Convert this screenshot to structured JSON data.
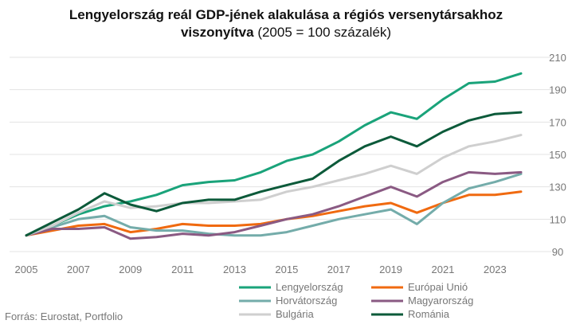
{
  "chart_data": {
    "type": "line",
    "title_bold_1": "Lengyelország reál GDP-jének alakulása a régiós versenytársakhoz",
    "title_bold_2": "viszonyítva",
    "title_rest": " (2005 = 100 százalék)",
    "xlabel": "",
    "ylabel": "",
    "x": [
      2005,
      2006,
      2007,
      2008,
      2009,
      2010,
      2011,
      2012,
      2013,
      2014,
      2015,
      2016,
      2017,
      2018,
      2019,
      2020,
      2021,
      2022,
      2023,
      2024
    ],
    "x_ticks": [
      "2005",
      "2007",
      "2009",
      "2011",
      "2013",
      "2015",
      "2017",
      "2019",
      "2021",
      "2023"
    ],
    "y_ticks": [
      "90",
      "110",
      "130",
      "150",
      "170",
      "190",
      "210"
    ],
    "ylim": [
      90,
      210
    ],
    "grid": "horizontal",
    "legend_position": "bottom",
    "y_axis_side": "right",
    "series": [
      {
        "name": "Lengyelország",
        "color": "#1aa37a",
        "values": [
          100,
          106,
          113,
          118,
          121,
          125,
          131,
          133,
          134,
          139,
          146,
          150,
          158,
          168,
          176,
          172,
          184,
          194,
          195,
          200
        ]
      },
      {
        "name": "Európai Unió",
        "color": "#f06a10",
        "values": [
          100,
          103,
          106,
          107,
          102,
          104,
          107,
          106,
          106,
          107,
          110,
          112,
          115,
          118,
          120,
          114,
          120,
          125,
          125,
          127
        ]
      },
      {
        "name": "Horvátország",
        "color": "#74acaa",
        "values": [
          100,
          105,
          110,
          112,
          105,
          103,
          103,
          101,
          100,
          100,
          102,
          106,
          110,
          113,
          116,
          107,
          120,
          129,
          133,
          138
        ]
      },
      {
        "name": "Magyarország",
        "color": "#8a5a83",
        "values": [
          100,
          104,
          104,
          105,
          98,
          99,
          101,
          100,
          102,
          106,
          110,
          113,
          118,
          124,
          130,
          124,
          133,
          139,
          138,
          139
        ]
      },
      {
        "name": "Bulgária",
        "color": "#cfcfcf",
        "values": [
          100,
          106,
          114,
          121,
          117,
          118,
          120,
          120,
          121,
          122,
          127,
          130,
          134,
          138,
          143,
          138,
          148,
          155,
          158,
          162
        ]
      },
      {
        "name": "Románia",
        "color": "#0c5a3a",
        "values": [
          100,
          108,
          116,
          126,
          119,
          115,
          120,
          122,
          122,
          127,
          131,
          135,
          146,
          155,
          161,
          155,
          164,
          171,
          175,
          176
        ]
      }
    ]
  },
  "source": "Forrás: Eurostat, Portfolio"
}
